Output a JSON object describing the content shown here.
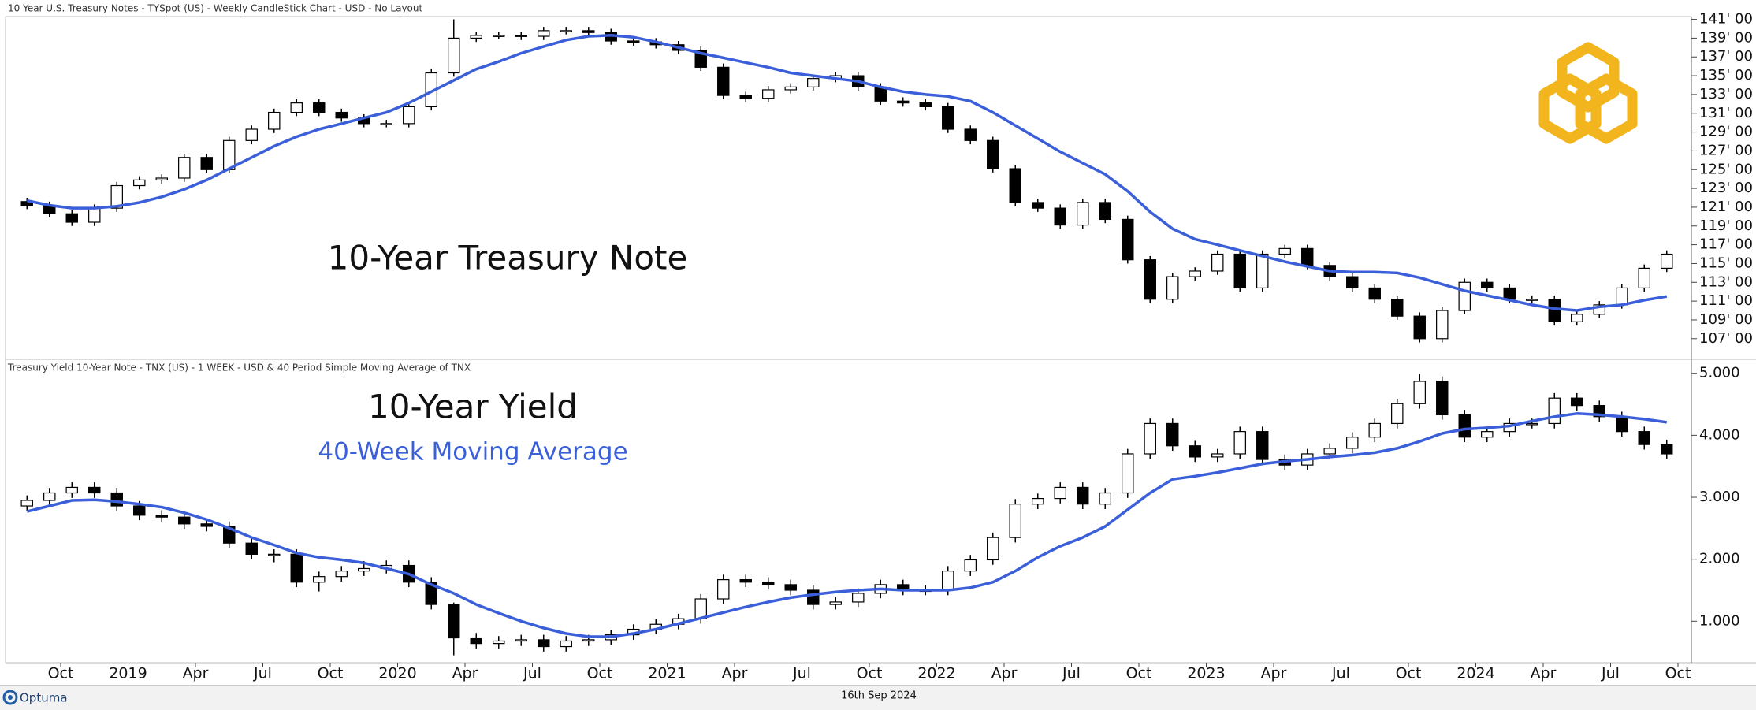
{
  "chart_data": [
    {
      "type": "candlestick",
      "title": "10 Year U.S. Treasury Notes - TYSpot (US) - Weekly CandleStick Chart - USD - No Layout",
      "annotations": [
        {
          "text": "10-Year Treasury Note",
          "color": "#111111"
        }
      ],
      "up_color": "#ffffff",
      "down_color": "#000000",
      "xlim": [
        "2018-08",
        "2024-10"
      ],
      "ylim": [
        104.8,
        141.3
      ],
      "yticks": [
        {
          "value": 107,
          "label": "107' 00"
        },
        {
          "value": 109,
          "label": "109' 00"
        },
        {
          "value": 111,
          "label": "111' 00"
        },
        {
          "value": 113,
          "label": "113' 00"
        },
        {
          "value": 115,
          "label": "115' 00"
        },
        {
          "value": 117,
          "label": "117' 00"
        },
        {
          "value": 119,
          "label": "119' 00"
        },
        {
          "value": 121,
          "label": "121' 00"
        },
        {
          "value": 123,
          "label": "123' 00"
        },
        {
          "value": 125,
          "label": "125' 00"
        },
        {
          "value": 127,
          "label": "127' 00"
        },
        {
          "value": 129,
          "label": "129' 00"
        },
        {
          "value": 131,
          "label": "131' 00"
        },
        {
          "value": 133,
          "label": "133' 00"
        },
        {
          "value": 135,
          "label": "135' 00"
        },
        {
          "value": 137,
          "label": "137' 00"
        },
        {
          "value": 139,
          "label": "139' 00"
        },
        {
          "value": 141,
          "label": "141' 00"
        }
      ],
      "x": [
        "2018-08",
        "2018-09",
        "2018-10",
        "2018-11",
        "2018-12",
        "2019-01",
        "2019-02",
        "2019-03",
        "2019-04",
        "2019-05",
        "2019-06",
        "2019-07",
        "2019-08",
        "2019-09",
        "2019-10",
        "2019-11",
        "2019-12",
        "2020-01",
        "2020-02",
        "2020-03",
        "2020-04",
        "2020-05",
        "2020-06",
        "2020-07",
        "2020-08",
        "2020-09",
        "2020-10",
        "2020-11",
        "2020-12",
        "2021-01",
        "2021-02",
        "2021-03",
        "2021-04",
        "2021-05",
        "2021-06",
        "2021-07",
        "2021-08",
        "2021-09",
        "2021-10",
        "2021-11",
        "2021-12",
        "2022-01",
        "2022-02",
        "2022-03",
        "2022-04",
        "2022-05",
        "2022-06",
        "2022-07",
        "2022-08",
        "2022-09",
        "2022-10",
        "2022-11",
        "2022-12",
        "2023-01",
        "2023-02",
        "2023-03",
        "2023-04",
        "2023-05",
        "2023-06",
        "2023-07",
        "2023-08",
        "2023-09",
        "2023-10",
        "2023-11",
        "2023-12",
        "2024-01",
        "2024-02",
        "2024-03",
        "2024-04",
        "2024-05",
        "2024-06",
        "2024-07",
        "2024-08",
        "2024-09"
      ],
      "open": [
        121.6,
        121.2,
        120.3,
        119.4,
        120.9,
        123.3,
        123.9,
        124.1,
        126.3,
        125.0,
        128.1,
        129.3,
        131.1,
        132.1,
        131.1,
        130.5,
        129.9,
        129.9,
        131.7,
        135.3,
        139.0,
        139.3,
        139.3,
        139.2,
        139.8,
        139.8,
        139.6,
        138.7,
        138.6,
        138.3,
        137.7,
        135.9,
        132.9,
        132.6,
        133.5,
        133.8,
        134.7,
        135.0,
        133.8,
        132.3,
        132.1,
        131.7,
        129.3,
        128.1,
        125.1,
        121.5,
        120.9,
        119.1,
        121.5,
        119.7,
        115.4,
        111.2,
        113.6,
        114.2,
        116.0,
        112.4,
        116.0,
        116.6,
        114.8,
        113.6,
        112.4,
        111.2,
        109.4,
        107.0,
        110.0,
        113.0,
        112.4,
        111.2,
        111.2,
        108.8,
        109.6,
        110.6,
        112.4,
        114.5
      ],
      "high": [
        122.0,
        121.6,
        120.7,
        121.3,
        123.7,
        124.3,
        124.5,
        126.7,
        126.7,
        128.5,
        129.7,
        131.5,
        132.5,
        132.5,
        131.5,
        130.9,
        130.3,
        132.1,
        135.7,
        141.0,
        139.7,
        139.7,
        139.7,
        140.2,
        140.2,
        140.2,
        140.0,
        139.1,
        139.0,
        138.7,
        138.1,
        136.3,
        133.3,
        133.9,
        134.2,
        135.1,
        135.4,
        135.4,
        134.2,
        132.7,
        132.5,
        132.1,
        129.7,
        128.5,
        125.5,
        121.9,
        121.3,
        121.9,
        121.9,
        120.1,
        115.8,
        114.0,
        114.6,
        116.4,
        116.4,
        116.4,
        117.0,
        117.0,
        115.2,
        114.0,
        112.8,
        111.6,
        109.8,
        110.4,
        113.4,
        113.4,
        112.8,
        111.6,
        111.6,
        110.0,
        111.0,
        112.8,
        114.9,
        116.4
      ],
      "low": [
        120.8,
        119.9,
        119.0,
        119.0,
        120.5,
        122.9,
        123.5,
        123.7,
        124.6,
        124.6,
        127.7,
        128.9,
        130.7,
        130.7,
        130.1,
        129.5,
        129.5,
        129.5,
        131.3,
        134.9,
        138.6,
        138.9,
        138.8,
        138.8,
        139.4,
        139.2,
        138.3,
        138.2,
        137.9,
        137.3,
        135.5,
        132.5,
        132.2,
        132.2,
        133.1,
        133.4,
        134.3,
        133.4,
        131.9,
        131.7,
        131.3,
        128.9,
        127.7,
        124.7,
        121.1,
        120.5,
        118.7,
        118.7,
        119.3,
        115.0,
        110.8,
        110.8,
        113.2,
        113.8,
        112.0,
        112.0,
        115.6,
        114.4,
        113.2,
        112.0,
        110.8,
        109.0,
        106.6,
        106.6,
        109.6,
        112.0,
        110.8,
        110.8,
        108.4,
        108.4,
        109.2,
        110.2,
        112.0,
        114.1
      ],
      "close": [
        121.2,
        120.3,
        119.4,
        120.9,
        123.3,
        123.9,
        124.1,
        126.3,
        125.0,
        128.1,
        129.3,
        131.1,
        132.1,
        131.1,
        130.5,
        129.9,
        129.9,
        131.7,
        135.3,
        139.0,
        139.3,
        139.3,
        139.2,
        139.8,
        139.8,
        139.6,
        138.7,
        138.6,
        138.3,
        137.7,
        135.9,
        132.9,
        132.6,
        133.5,
        133.8,
        134.7,
        135.0,
        133.8,
        132.3,
        132.1,
        131.7,
        129.3,
        128.1,
        125.1,
        121.5,
        120.9,
        119.1,
        121.5,
        119.7,
        115.4,
        111.2,
        113.6,
        114.2,
        116.0,
        112.4,
        116.0,
        116.6,
        114.8,
        113.6,
        112.4,
        111.2,
        109.4,
        107.0,
        110.0,
        113.0,
        112.4,
        111.2,
        111.2,
        108.8,
        109.6,
        110.6,
        112.4,
        114.5,
        116.0
      ],
      "moving_average": {
        "color": "#3a5fd9",
        "values": [
          121.7,
          121.2,
          120.9,
          120.9,
          121.1,
          121.5,
          122.1,
          122.9,
          123.9,
          125.1,
          126.3,
          127.5,
          128.5,
          129.3,
          129.9,
          130.5,
          131.1,
          132.1,
          133.3,
          134.5,
          135.7,
          136.5,
          137.4,
          138.1,
          138.8,
          139.2,
          139.3,
          139.1,
          138.6,
          138.0,
          137.4,
          136.9,
          136.4,
          135.9,
          135.3,
          135.0,
          134.7,
          134.4,
          133.8,
          133.3,
          133.0,
          132.8,
          132.3,
          131.1,
          129.7,
          128.3,
          126.9,
          125.7,
          124.5,
          122.7,
          120.5,
          118.7,
          117.6,
          117.0,
          116.4,
          115.8,
          115.2,
          114.7,
          114.2,
          114.1,
          114.1,
          114.0,
          113.5,
          112.8,
          112.1,
          111.6,
          111.1,
          110.6,
          110.2,
          110.0,
          110.4,
          110.6,
          111.1,
          111.5
        ]
      }
    },
    {
      "type": "candlestick",
      "title": "Treasury Yield 10-Year Note - TNX (US) - 1 WEEK - USD & 40 Period Simple Moving Average of TNX",
      "annotations": [
        {
          "text": "10-Year Yield",
          "color": "#111111"
        },
        {
          "text": "40-Week Moving Average",
          "color": "#3a5fd9"
        }
      ],
      "up_color": "#ffffff",
      "down_color": "#000000",
      "xlim": [
        "2018-08",
        "2024-10"
      ],
      "ylim": [
        0.33,
        5.2
      ],
      "yticks": [
        {
          "value": 1,
          "label": "1.000"
        },
        {
          "value": 2,
          "label": "2.000"
        },
        {
          "value": 3,
          "label": "3.000"
        },
        {
          "value": 4,
          "label": "4.000"
        },
        {
          "value": 5,
          "label": "5.000"
        }
      ],
      "xticks": [
        {
          "value": "2018-10",
          "label": "Oct"
        },
        {
          "value": "2019-01",
          "label": "2019"
        },
        {
          "value": "2019-04",
          "label": "Apr"
        },
        {
          "value": "2019-07",
          "label": "Jul"
        },
        {
          "value": "2019-10",
          "label": "Oct"
        },
        {
          "value": "2020-01",
          "label": "2020"
        },
        {
          "value": "2020-04",
          "label": "Apr"
        },
        {
          "value": "2020-07",
          "label": "Jul"
        },
        {
          "value": "2020-10",
          "label": "Oct"
        },
        {
          "value": "2021-01",
          "label": "2021"
        },
        {
          "value": "2021-04",
          "label": "Apr"
        },
        {
          "value": "2021-07",
          "label": "Jul"
        },
        {
          "value": "2021-10",
          "label": "Oct"
        },
        {
          "value": "2022-01",
          "label": "2022"
        },
        {
          "value": "2022-04",
          "label": "Apr"
        },
        {
          "value": "2022-07",
          "label": "Jul"
        },
        {
          "value": "2022-10",
          "label": "Oct"
        },
        {
          "value": "2023-01",
          "label": "2023"
        },
        {
          "value": "2023-04",
          "label": "Apr"
        },
        {
          "value": "2023-07",
          "label": "Jul"
        },
        {
          "value": "2023-10",
          "label": "Oct"
        },
        {
          "value": "2024-01",
          "label": "2024"
        },
        {
          "value": "2024-04",
          "label": "Apr"
        },
        {
          "value": "2024-07",
          "label": "Jul"
        },
        {
          "value": "2024-10",
          "label": "Oct"
        }
      ],
      "x": [
        "2018-08",
        "2018-09",
        "2018-10",
        "2018-11",
        "2018-12",
        "2019-01",
        "2019-02",
        "2019-03",
        "2019-04",
        "2019-05",
        "2019-06",
        "2019-07",
        "2019-08",
        "2019-09",
        "2019-10",
        "2019-11",
        "2019-12",
        "2020-01",
        "2020-02",
        "2020-03",
        "2020-04",
        "2020-05",
        "2020-06",
        "2020-07",
        "2020-08",
        "2020-09",
        "2020-10",
        "2020-11",
        "2020-12",
        "2021-01",
        "2021-02",
        "2021-03",
        "2021-04",
        "2021-05",
        "2021-06",
        "2021-07",
        "2021-08",
        "2021-09",
        "2021-10",
        "2021-11",
        "2021-12",
        "2022-01",
        "2022-02",
        "2022-03",
        "2022-04",
        "2022-05",
        "2022-06",
        "2022-07",
        "2022-08",
        "2022-09",
        "2022-10",
        "2022-11",
        "2022-12",
        "2023-01",
        "2023-02",
        "2023-03",
        "2023-04",
        "2023-05",
        "2023-06",
        "2023-07",
        "2023-08",
        "2023-09",
        "2023-10",
        "2023-11",
        "2023-12",
        "2024-01",
        "2024-02",
        "2024-03",
        "2024-04",
        "2024-05",
        "2024-06",
        "2024-07",
        "2024-08",
        "2024-09"
      ],
      "open": [
        2.86,
        2.95,
        3.07,
        3.16,
        3.07,
        2.86,
        2.71,
        2.68,
        2.57,
        2.53,
        2.26,
        2.08,
        2.08,
        1.63,
        1.72,
        1.81,
        1.85,
        1.9,
        1.63,
        1.27,
        0.73,
        0.64,
        0.68,
        0.7,
        0.59,
        0.68,
        0.7,
        0.78,
        0.87,
        0.95,
        1.04,
        1.36,
        1.67,
        1.63,
        1.59,
        1.5,
        1.27,
        1.31,
        1.45,
        1.59,
        1.5,
        1.5,
        1.81,
        1.99,
        2.35,
        2.89,
        2.98,
        3.16,
        2.89,
        3.07,
        3.7,
        4.19,
        3.83,
        3.65,
        3.7,
        4.06,
        3.61,
        3.52,
        3.7,
        3.79,
        3.97,
        4.19,
        4.51,
        4.87,
        4.33,
        3.97,
        4.06,
        4.19,
        4.19,
        4.6,
        4.48,
        4.3,
        4.06,
        3.85
      ],
      "high": [
        3.03,
        3.15,
        3.24,
        3.24,
        3.15,
        2.94,
        2.79,
        2.76,
        2.65,
        2.61,
        2.34,
        2.16,
        2.16,
        1.8,
        1.89,
        1.97,
        1.98,
        1.98,
        1.71,
        1.3,
        0.81,
        0.76,
        0.78,
        0.78,
        0.76,
        0.78,
        0.86,
        0.95,
        1.03,
        1.12,
        1.44,
        1.75,
        1.75,
        1.71,
        1.67,
        1.58,
        1.39,
        1.53,
        1.67,
        1.67,
        1.58,
        1.89,
        2.07,
        2.43,
        2.97,
        3.06,
        3.24,
        3.24,
        3.15,
        3.78,
        4.27,
        4.27,
        3.91,
        3.78,
        4.14,
        4.14,
        3.69,
        3.78,
        3.87,
        4.05,
        4.27,
        4.59,
        4.99,
        4.95,
        4.41,
        4.14,
        4.27,
        4.27,
        4.68,
        4.68,
        4.56,
        4.38,
        4.14,
        3.93
      ],
      "low": [
        2.78,
        2.87,
        2.99,
        2.99,
        2.78,
        2.63,
        2.6,
        2.49,
        2.45,
        2.18,
        2.0,
        1.95,
        1.55,
        1.48,
        1.64,
        1.73,
        1.77,
        1.55,
        1.19,
        0.45,
        0.56,
        0.56,
        0.6,
        0.51,
        0.51,
        0.6,
        0.62,
        0.7,
        0.79,
        0.87,
        0.96,
        1.28,
        1.55,
        1.51,
        1.42,
        1.19,
        1.19,
        1.23,
        1.37,
        1.42,
        1.42,
        1.42,
        1.73,
        1.91,
        2.27,
        2.81,
        2.9,
        2.81,
        2.81,
        2.99,
        3.62,
        3.75,
        3.57,
        3.57,
        3.62,
        3.53,
        3.44,
        3.44,
        3.62,
        3.71,
        3.89,
        4.11,
        4.43,
        4.25,
        3.89,
        3.89,
        3.98,
        4.11,
        4.11,
        4.4,
        4.22,
        3.98,
        3.77,
        3.62
      ],
      "close": [
        2.95,
        3.07,
        3.16,
        3.07,
        2.86,
        2.71,
        2.68,
        2.57,
        2.53,
        2.26,
        2.08,
        2.08,
        1.63,
        1.72,
        1.81,
        1.85,
        1.9,
        1.63,
        1.27,
        0.73,
        0.64,
        0.68,
        0.7,
        0.59,
        0.68,
        0.7,
        0.78,
        0.87,
        0.95,
        1.04,
        1.36,
        1.67,
        1.63,
        1.59,
        1.5,
        1.27,
        1.31,
        1.45,
        1.59,
        1.5,
        1.5,
        1.81,
        1.99,
        2.35,
        2.89,
        2.98,
        3.16,
        2.89,
        3.07,
        3.7,
        4.19,
        3.83,
        3.65,
        3.7,
        4.06,
        3.61,
        3.52,
        3.7,
        3.79,
        3.97,
        4.19,
        4.51,
        4.87,
        4.33,
        3.97,
        4.06,
        4.19,
        4.19,
        4.6,
        4.48,
        4.3,
        4.06,
        3.85,
        3.7
      ],
      "moving_average": {
        "color": "#3a5fd9",
        "values": [
          2.77,
          2.86,
          2.95,
          2.96,
          2.93,
          2.89,
          2.84,
          2.75,
          2.64,
          2.5,
          2.35,
          2.23,
          2.1,
          2.03,
          1.99,
          1.94,
          1.85,
          1.76,
          1.59,
          1.45,
          1.27,
          1.13,
          1.0,
          0.89,
          0.8,
          0.75,
          0.75,
          0.8,
          0.87,
          0.96,
          1.05,
          1.14,
          1.23,
          1.31,
          1.38,
          1.43,
          1.47,
          1.5,
          1.52,
          1.5,
          1.5,
          1.5,
          1.54,
          1.63,
          1.81,
          2.03,
          2.21,
          2.35,
          2.53,
          2.8,
          3.07,
          3.29,
          3.34,
          3.4,
          3.47,
          3.54,
          3.58,
          3.61,
          3.65,
          3.68,
          3.72,
          3.79,
          3.9,
          4.03,
          4.1,
          4.12,
          4.15,
          4.23,
          4.3,
          4.35,
          4.33,
          4.3,
          4.26,
          4.21
        ]
      }
    }
  ],
  "footer": {
    "brand": "Optuma",
    "date": "16th Sep 2024"
  }
}
